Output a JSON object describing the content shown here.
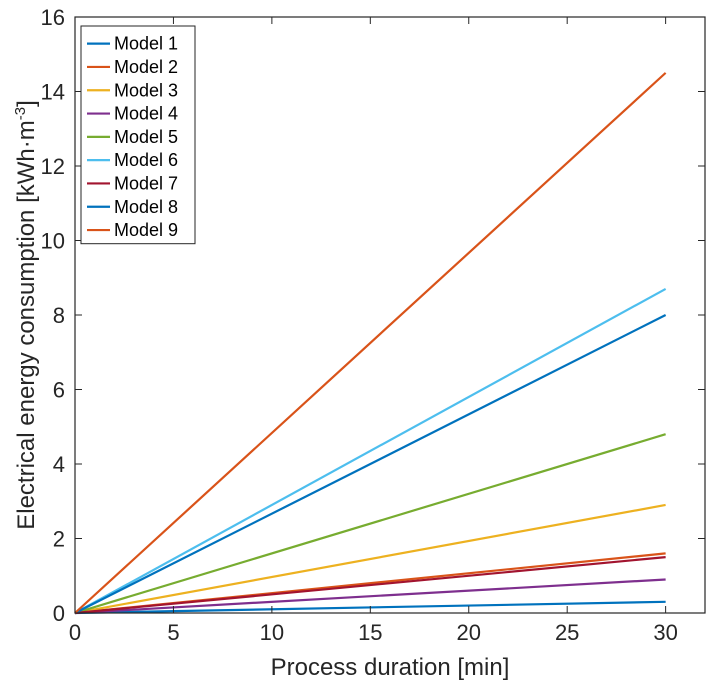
{
  "chart_data": {
    "type": "line",
    "title": "",
    "xlabel": "Process duration [min]",
    "ylabel": "Electrical energy consumption [kWh·m⁻³]",
    "ylabel_parts": {
      "main": "Electrical energy consumption [kWh·m",
      "sup": "-3",
      "close": "]"
    },
    "xlim": [
      0,
      32
    ],
    "ylim": [
      0,
      16
    ],
    "xticks": [
      0,
      5,
      10,
      15,
      20,
      25,
      30
    ],
    "yticks": [
      0,
      2,
      4,
      6,
      8,
      10,
      12,
      14,
      16
    ],
    "grid": false,
    "legend_position": "top-left",
    "x": [
      0,
      30
    ],
    "series": [
      {
        "name": "Model 1",
        "color": "#0072BD",
        "values": [
          0,
          0.3
        ]
      },
      {
        "name": "Model 2",
        "color": "#D95319",
        "values": [
          0,
          1.6
        ]
      },
      {
        "name": "Model 3",
        "color": "#EDB120",
        "values": [
          0,
          2.9
        ]
      },
      {
        "name": "Model 4",
        "color": "#7E2F8E",
        "values": [
          0,
          0.9
        ]
      },
      {
        "name": "Model 5",
        "color": "#77AC30",
        "values": [
          0,
          4.8
        ]
      },
      {
        "name": "Model 6",
        "color": "#4DBEEE",
        "values": [
          0,
          8.7
        ]
      },
      {
        "name": "Model 7",
        "color": "#A2142F",
        "values": [
          0,
          1.5
        ]
      },
      {
        "name": "Model 8",
        "color": "#0072BD",
        "values": [
          0,
          8.0
        ]
      },
      {
        "name": "Model 9",
        "color": "#D95319",
        "values": [
          0,
          14.5
        ]
      }
    ]
  }
}
